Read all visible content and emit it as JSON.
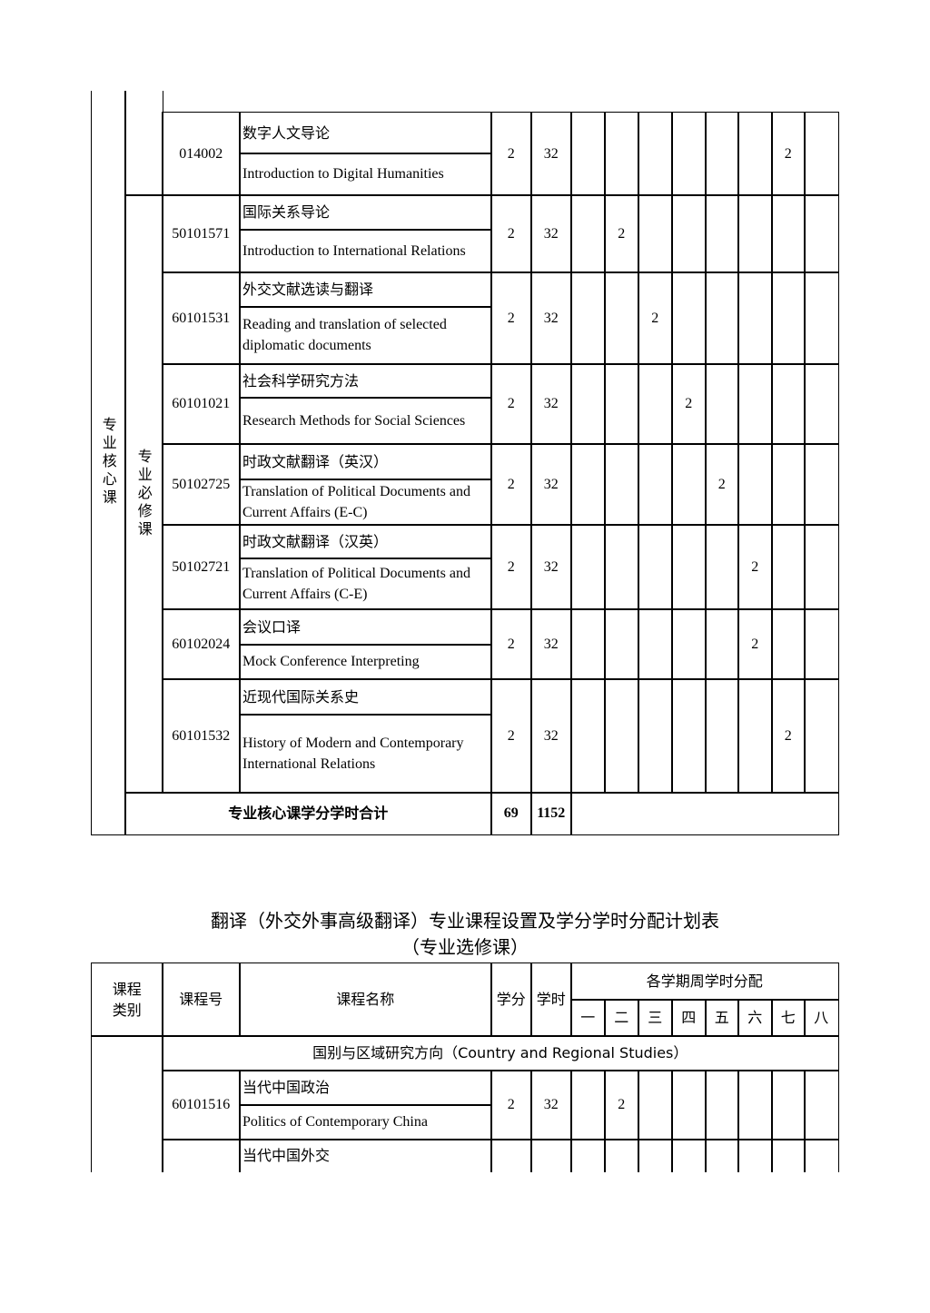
{
  "core_table": {
    "category": "专业核心课",
    "subcategory": "专业必修课",
    "rows": [
      {
        "code": "014002",
        "zh": "数字人文导论",
        "en": "Introduction to Digital Humanities",
        "credit": "2",
        "hours": "32",
        "sem": [
          "",
          "",
          "",
          "",
          "",
          "",
          "2",
          ""
        ]
      },
      {
        "code": "50101571",
        "zh": "国际关系导论",
        "en": "Introduction to International Relations",
        "credit": "2",
        "hours": "32",
        "sem": [
          "",
          "2",
          "",
          "",
          "",
          "",
          "",
          ""
        ]
      },
      {
        "code": "60101531",
        "zh": "外交文献选读与翻译",
        "en": "Reading and translation of selected diplomatic documents",
        "credit": "2",
        "hours": "32",
        "sem": [
          "",
          "",
          "2",
          "",
          "",
          "",
          "",
          ""
        ]
      },
      {
        "code": "60101021",
        "zh": "社会科学研究方法",
        "en": "Research Methods for Social Sciences",
        "credit": "2",
        "hours": "32",
        "sem": [
          "",
          "",
          "",
          "2",
          "",
          "",
          "",
          ""
        ]
      },
      {
        "code": "50102725",
        "zh": "时政文献翻译（英汉）",
        "en": "Translation of Political Documents and Current Affairs (E-C)",
        "credit": "2",
        "hours": "32",
        "sem": [
          "",
          "",
          "",
          "",
          "2",
          "",
          "",
          ""
        ]
      },
      {
        "code": "50102721",
        "zh": "时政文献翻译（汉英）",
        "en": "Translation of Political Documents and Current Affairs (C-E)",
        "credit": "2",
        "hours": "32",
        "sem": [
          "",
          "",
          "",
          "",
          "",
          "2",
          "",
          ""
        ]
      },
      {
        "code": "60102024",
        "zh": "会议口译",
        "en": "Mock Conference Interpreting",
        "credit": "2",
        "hours": "32",
        "sem": [
          "",
          "",
          "",
          "",
          "",
          "2",
          "",
          ""
        ]
      },
      {
        "code": "60101532",
        "zh": "近现代国际关系史",
        "en": "History of Modern and Contemporary International Relations",
        "credit": "2",
        "hours": "32",
        "sem": [
          "",
          "",
          "",
          "",
          "",
          "",
          "2",
          ""
        ]
      }
    ],
    "total": {
      "label": "专业核心课学分学时合计",
      "credit": "69",
      "hours": "1152"
    }
  },
  "elective": {
    "title": "翻译（外交外事高级翻译）专业课程设置及学分学时分配计划表",
    "subtitle": "（专业选修课）",
    "headers": {
      "category": "课程\n类别",
      "code": "课程号",
      "name": "课程名称",
      "credit": "学分",
      "hours": "学时",
      "semester_group": "各学期周学时分配",
      "semesters": [
        "一",
        "二",
        "三",
        "四",
        "五",
        "六",
        "七",
        "八"
      ]
    },
    "direction": "国别与区域研究方向（Country and Regional Studies）",
    "rows": [
      {
        "code": "60101516",
        "zh": "当代中国政治",
        "en": "Politics of Contemporary China",
        "credit": "2",
        "hours": "32",
        "sem": [
          "",
          "2",
          "",
          "",
          "",
          "",
          "",
          ""
        ]
      },
      {
        "code": "",
        "zh": "当代中国外交",
        "en": "",
        "credit": "",
        "hours": "",
        "sem": [
          "",
          "",
          "",
          "",
          "",
          "",
          "",
          ""
        ]
      }
    ]
  }
}
